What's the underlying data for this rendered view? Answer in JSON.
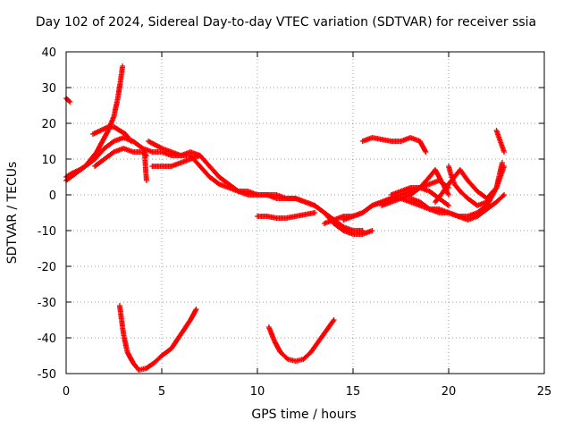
{
  "chart_data": {
    "type": "scatter",
    "title": "Day 102 of 2024, Sidereal Day-to-day VTEC variation (SDTVAR) for receiver ssia",
    "xlabel": "GPS time / hours",
    "ylabel": "SDTVAR / TECUs",
    "xlim": [
      0,
      25
    ],
    "ylim": [
      -50,
      40
    ],
    "xticks": [
      0,
      5,
      10,
      15,
      20,
      25
    ],
    "yticks": [
      40,
      30,
      20,
      10,
      0,
      -10,
      -20,
      -30,
      -40,
      -50
    ],
    "grid": true,
    "marker": "+",
    "color": "#ff0000",
    "series": [
      {
        "name": "trace-01",
        "x": [
          0.0,
          0.2
        ],
        "y": [
          27,
          26
        ]
      },
      {
        "name": "trace-02",
        "x": [
          0.0,
          0.3,
          0.7,
          1.0,
          1.3,
          1.6,
          1.9,
          2.2,
          2.5,
          2.7,
          2.85,
          2.95
        ],
        "y": [
          5,
          6,
          7,
          8,
          10,
          12,
          15,
          18,
          22,
          27,
          32,
          36
        ]
      },
      {
        "name": "trace-03",
        "x": [
          0.0,
          0.5,
          1.0,
          1.5,
          2.0,
          2.5,
          3.0,
          3.5,
          4.0,
          4.5,
          5.0,
          5.5,
          6.0,
          6.5,
          7.0
        ],
        "y": [
          4,
          6,
          8,
          10,
          13,
          15,
          16,
          15,
          13,
          12,
          12,
          11,
          11,
          12,
          11
        ]
      },
      {
        "name": "trace-04",
        "x": [
          1.4,
          1.8,
          2.2,
          2.5,
          2.8,
          3.1,
          3.4
        ],
        "y": [
          17,
          18,
          19,
          19,
          18,
          17,
          15
        ]
      },
      {
        "name": "trace-05",
        "x": [
          1.5,
          2.0,
          2.5,
          3.0,
          3.5,
          4.0,
          4.2
        ],
        "y": [
          8,
          10,
          12,
          13,
          12,
          12,
          11
        ]
      },
      {
        "name": "trace-06",
        "x": [
          4.1,
          4.15,
          4.2
        ],
        "y": [
          12,
          8,
          4
        ]
      },
      {
        "name": "trace-07",
        "x": [
          4.3,
          5.0,
          5.5,
          6.0,
          6.5,
          7.0,
          7.5,
          8.0,
          8.5,
          9.0,
          9.5,
          10.0,
          10.5,
          11.0,
          11.5,
          12.0,
          12.5,
          13.0,
          13.5,
          14.0,
          14.5,
          15.0,
          15.5
        ],
        "y": [
          15,
          13,
          12,
          11,
          11,
          8,
          5,
          3,
          2,
          1,
          1,
          0,
          0,
          0,
          -1,
          -1,
          -2,
          -3,
          -5,
          -7,
          -9,
          -10,
          -10
        ]
      },
      {
        "name": "trace-08",
        "x": [
          4.5,
          5.0,
          5.5,
          6.0,
          6.5,
          7.0,
          7.5,
          8.0,
          8.5,
          9.0,
          9.5,
          10.0,
          10.5,
          11.0,
          11.5,
          12.0,
          12.5,
          13.0,
          13.5,
          14.0,
          14.5,
          15.0,
          15.5,
          16.0
        ],
        "y": [
          8,
          8,
          8,
          9,
          10,
          11,
          8,
          5,
          3,
          1,
          0,
          0,
          0,
          -1,
          -1,
          -1,
          -2,
          -3,
          -5,
          -8,
          -10,
          -11,
          -11,
          -10
        ]
      },
      {
        "name": "trace-09",
        "x": [
          10.0,
          10.5,
          11.0,
          11.5,
          12.0,
          12.5,
          13.0
        ],
        "y": [
          -6,
          -6,
          -6.5,
          -6.5,
          -6,
          -5.5,
          -5
        ]
      },
      {
        "name": "trace-10",
        "x": [
          13.5,
          14.0,
          14.5,
          15.0,
          15.5,
          16.0,
          16.5,
          17.0,
          17.5,
          18.0,
          18.5,
          19.0,
          19.5,
          20.0
        ],
        "y": [
          -8,
          -7,
          -6,
          -6,
          -5,
          -3,
          -2,
          -1,
          0,
          1,
          2,
          3,
          4,
          2
        ]
      },
      {
        "name": "trace-11",
        "x": [
          14.5,
          15.0,
          15.5,
          16.0,
          16.5,
          17.0,
          17.5,
          18.0,
          18.5,
          19.0,
          19.5,
          20.0,
          20.5,
          21.0,
          21.5,
          22.0,
          22.5,
          22.9
        ],
        "y": [
          -7,
          -6,
          -5,
          -3,
          -2,
          -1,
          -1,
          -2,
          -3,
          -4,
          -4,
          -5,
          -6,
          -7,
          -6,
          -4,
          -2,
          0
        ]
      },
      {
        "name": "trace-12",
        "x": [
          15.5,
          16.0,
          16.5,
          17.0,
          17.5,
          18.0,
          18.5,
          18.8
        ],
        "y": [
          15,
          16,
          15.5,
          15,
          15,
          16,
          15,
          12
        ]
      },
      {
        "name": "trace-13",
        "x": [
          16.5,
          17.0,
          17.5,
          18.0,
          18.5,
          19.0,
          19.3,
          19.6,
          20.0
        ],
        "y": [
          -3,
          -2,
          -1,
          0,
          2,
          5,
          7,
          4,
          0
        ]
      },
      {
        "name": "trace-14",
        "x": [
          17.0,
          17.5,
          18.0,
          18.5,
          19.0,
          19.5,
          20.0
        ],
        "y": [
          0,
          1,
          2,
          2,
          1,
          -1,
          -3
        ]
      },
      {
        "name": "trace-15",
        "x": [
          18.0,
          18.5,
          19.0,
          19.5,
          20.0,
          20.5,
          21.0,
          21.5,
          22.0,
          22.5,
          22.9
        ],
        "y": [
          -1,
          -2,
          -4,
          -5,
          -5,
          -6,
          -6,
          -5,
          -3,
          2,
          8
        ]
      },
      {
        "name": "trace-16",
        "x": [
          19.3,
          19.6,
          20.0,
          20.3,
          20.6,
          21.0,
          21.5,
          22.0,
          22.5
        ],
        "y": [
          -2,
          0,
          3,
          5,
          7,
          4,
          1,
          -1,
          2
        ]
      },
      {
        "name": "trace-17",
        "x": [
          20.0,
          20.1,
          20.3,
          20.6,
          21.0,
          21.5,
          22.0,
          22.5,
          22.8
        ],
        "y": [
          8,
          6,
          3,
          1,
          -1,
          -3,
          -2,
          2,
          9
        ]
      },
      {
        "name": "trace-18",
        "x": [
          22.5,
          22.7,
          22.9
        ],
        "y": [
          18,
          15,
          12
        ]
      },
      {
        "name": "trace-19",
        "x": [
          2.8,
          2.9,
          3.0,
          3.2,
          3.5,
          3.8,
          4.2,
          4.6,
          5.0,
          5.5,
          6.0,
          6.5,
          6.8
        ],
        "y": [
          -31,
          -35,
          -39,
          -44,
          -47,
          -49,
          -48.5,
          -47,
          -45,
          -43,
          -39,
          -35,
          -32
        ]
      },
      {
        "name": "trace-20",
        "x": [
          10.6,
          10.9,
          11.2,
          11.6,
          12.0,
          12.4,
          12.8,
          13.2,
          13.6,
          14.0
        ],
        "y": [
          -37,
          -41,
          -44,
          -46,
          -46.5,
          -46,
          -44,
          -41,
          -38,
          -35
        ]
      }
    ]
  }
}
